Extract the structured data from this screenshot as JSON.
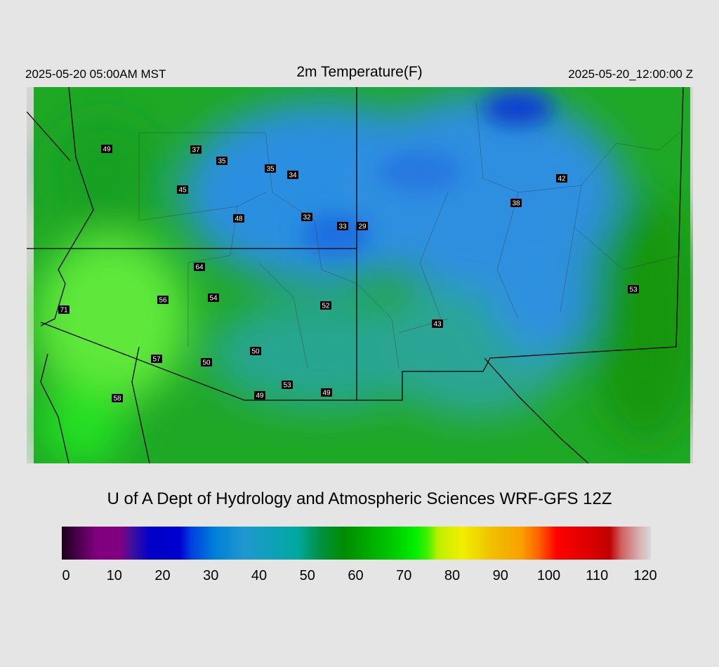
{
  "header": {
    "valid_local": "2025-05-20 05:00AM MST",
    "title": "2m Temperature(F)",
    "valid_utc": "2025-05-20_12:00:00 Z"
  },
  "map": {
    "stations": [
      "49",
      "37",
      "35",
      "35",
      "34",
      "45",
      "48",
      "32",
      "33",
      "29",
      "42",
      "38",
      "64",
      "54",
      "56",
      "52",
      "71",
      "43",
      "53",
      "50",
      "57",
      "50",
      "53",
      "49",
      "49",
      "58"
    ]
  },
  "credit": "U of A Dept of Hydrology and Atmospheric Sciences WRF-GFS 12Z",
  "colorbar": {
    "ticks": [
      0,
      10,
      20,
      30,
      40,
      50,
      60,
      70,
      80,
      90,
      100,
      110,
      120
    ]
  }
}
